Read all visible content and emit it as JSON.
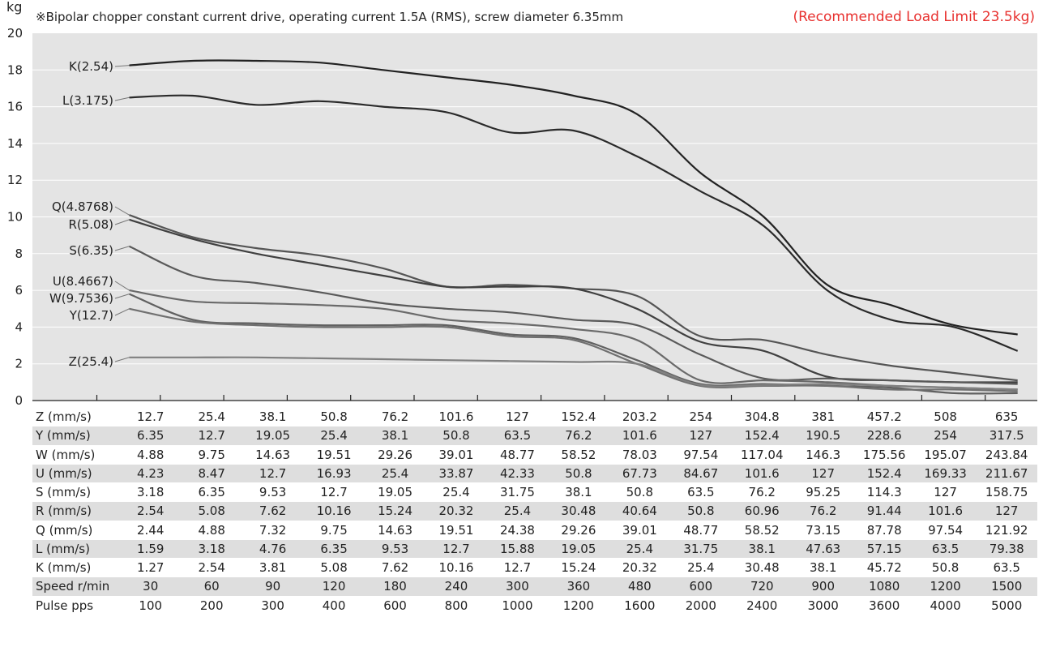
{
  "header": {
    "unit": "kg",
    "note": "※Bipolar chopper constant current drive, operating current 1.5A (RMS), screw diameter 6.35mm",
    "limit": "(Recommended Load Limit 23.5kg)"
  },
  "colors": {
    "plot_bg": "#e4e4e4",
    "grid": "#ffffff",
    "limit_text": "#e8312f",
    "row_alt": "#dedede"
  },
  "chart_data": {
    "type": "line",
    "ylim": [
      0,
      20
    ],
    "yticks": [
      0,
      2,
      4,
      6,
      8,
      10,
      12,
      14,
      16,
      18,
      20
    ],
    "ylabel": "kg",
    "x_count": 15,
    "grid": "horizontal",
    "series": [
      {
        "name": "K(2.54)",
        "color": "#222222",
        "values": [
          18.25,
          18.5,
          18.5,
          18.4,
          18.0,
          17.6,
          17.2,
          16.6,
          15.6,
          12.4,
          10.0,
          6.3,
          5.2,
          4.1,
          3.6
        ]
      },
      {
        "name": "L(3.175)",
        "color": "#2a2a2a",
        "values": [
          16.5,
          16.6,
          16.1,
          16.3,
          16.0,
          15.7,
          14.6,
          14.7,
          13.3,
          11.4,
          9.5,
          6.0,
          4.4,
          4.0,
          2.7
        ]
      },
      {
        "name": "Q(4.8768)",
        "color": "#555555",
        "values": [
          10.1,
          8.9,
          8.3,
          7.9,
          7.2,
          6.2,
          6.3,
          6.1,
          5.7,
          3.5,
          3.3,
          2.5,
          1.9,
          1.5,
          1.1
        ]
      },
      {
        "name": "R(5.08)",
        "color": "#404040",
        "values": [
          9.85,
          8.8,
          8.0,
          7.4,
          6.8,
          6.2,
          6.2,
          6.1,
          5.0,
          3.2,
          2.7,
          1.3,
          1.1,
          1.0,
          1.0
        ]
      },
      {
        "name": "S(6.35)",
        "color": "#5a5a5a",
        "values": [
          8.4,
          6.8,
          6.4,
          5.9,
          5.3,
          5.0,
          4.8,
          4.4,
          4.1,
          2.5,
          1.2,
          1.2,
          1.1,
          1.0,
          0.9
        ]
      },
      {
        "name": "U(8.4667)",
        "color": "#6a6a6a",
        "values": [
          6.0,
          5.4,
          5.3,
          5.2,
          5.0,
          4.4,
          4.2,
          3.9,
          3.3,
          1.1,
          1.1,
          1.0,
          0.8,
          0.7,
          0.6
        ]
      },
      {
        "name": "W(9.7536)",
        "color": "#606060",
        "values": [
          5.8,
          4.4,
          4.2,
          4.1,
          4.1,
          4.1,
          3.6,
          3.4,
          2.2,
          0.9,
          0.9,
          0.8,
          0.7,
          0.4,
          0.4
        ]
      },
      {
        "name": "Y(12.7)",
        "color": "#707070",
        "values": [
          5.0,
          4.3,
          4.1,
          4.0,
          4.0,
          4.0,
          3.5,
          3.3,
          2.0,
          0.8,
          0.8,
          0.8,
          0.6,
          0.6,
          0.5
        ]
      },
      {
        "name": "Z(25.4)",
        "color": "#808080",
        "values": [
          2.35,
          2.35,
          2.35,
          2.3,
          2.25,
          2.2,
          2.15,
          2.1,
          2.0,
          0.85,
          0.85,
          0.9,
          0.8,
          0.7,
          0.6
        ]
      }
    ]
  },
  "table": {
    "rows": [
      {
        "label": "Z (mm/s)",
        "values": [
          "12.7",
          "25.4",
          "38.1",
          "50.8",
          "76.2",
          "101.6",
          "127",
          "152.4",
          "203.2",
          "254",
          "304.8",
          "381",
          "457.2",
          "508",
          "635"
        ]
      },
      {
        "label": "Y (mm/s)",
        "values": [
          "6.35",
          "12.7",
          "19.05",
          "25.4",
          "38.1",
          "50.8",
          "63.5",
          "76.2",
          "101.6",
          "127",
          "152.4",
          "190.5",
          "228.6",
          "254",
          "317.5"
        ]
      },
      {
        "label": "W (mm/s)",
        "values": [
          "4.88",
          "9.75",
          "14.63",
          "19.51",
          "29.26",
          "39.01",
          "48.77",
          "58.52",
          "78.03",
          "97.54",
          "117.04",
          "146.3",
          "175.56",
          "195.07",
          "243.84"
        ]
      },
      {
        "label": "U (mm/s)",
        "values": [
          "4.23",
          "8.47",
          "12.7",
          "16.93",
          "25.4",
          "33.87",
          "42.33",
          "50.8",
          "67.73",
          "84.67",
          "101.6",
          "127",
          "152.4",
          "169.33",
          "211.67"
        ]
      },
      {
        "label": "S (mm/s)",
        "values": [
          "3.18",
          "6.35",
          "9.53",
          "12.7",
          "19.05",
          "25.4",
          "31.75",
          "38.1",
          "50.8",
          "63.5",
          "76.2",
          "95.25",
          "114.3",
          "127",
          "158.75"
        ]
      },
      {
        "label": "R (mm/s)",
        "values": [
          "2.54",
          "5.08",
          "7.62",
          "10.16",
          "15.24",
          "20.32",
          "25.4",
          "30.48",
          "40.64",
          "50.8",
          "60.96",
          "76.2",
          "91.44",
          "101.6",
          "127"
        ]
      },
      {
        "label": "Q (mm/s)",
        "values": [
          "2.44",
          "4.88",
          "7.32",
          "9.75",
          "14.63",
          "19.51",
          "24.38",
          "29.26",
          "39.01",
          "48.77",
          "58.52",
          "73.15",
          "87.78",
          "97.54",
          "121.92"
        ]
      },
      {
        "label": "L (mm/s)",
        "values": [
          "1.59",
          "3.18",
          "4.76",
          "6.35",
          "9.53",
          "12.7",
          "15.88",
          "19.05",
          "25.4",
          "31.75",
          "38.1",
          "47.63",
          "57.15",
          "63.5",
          "79.38"
        ]
      },
      {
        "label": "K (mm/s)",
        "values": [
          "1.27",
          "2.54",
          "3.81",
          "5.08",
          "7.62",
          "10.16",
          "12.7",
          "15.24",
          "20.32",
          "25.4",
          "30.48",
          "38.1",
          "45.72",
          "50.8",
          "63.5"
        ]
      },
      {
        "label": "Speed  r/min",
        "values": [
          "30",
          "60",
          "90",
          "120",
          "180",
          "240",
          "300",
          "360",
          "480",
          "600",
          "720",
          "900",
          "1080",
          "1200",
          "1500"
        ]
      },
      {
        "label": "Pulse  pps",
        "values": [
          "100",
          "200",
          "300",
          "400",
          "600",
          "800",
          "1000",
          "1200",
          "1600",
          "2000",
          "2400",
          "3000",
          "3600",
          "4000",
          "5000"
        ]
      }
    ]
  }
}
